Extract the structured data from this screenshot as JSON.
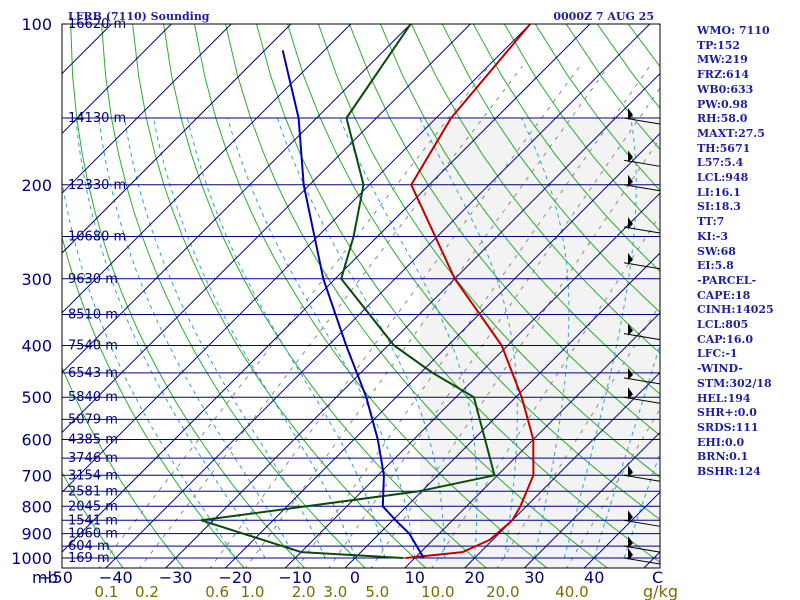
{
  "header": {
    "title": "LFRB (7110) Sounding",
    "valid": "0000Z  7 AUG 25"
  },
  "stats": [
    "WMO: 7110",
    "TP:152",
    "MW:219",
    "FRZ:614",
    "WB0:633",
    "PW:0.98",
    "RH:58.0",
    "MAXT:27.5",
    "TH:5671",
    "L57:5.4",
    "LCL:948",
    "LI:16.1",
    "SI:18.3",
    "TT:7",
    "KI:-3",
    "SW:68",
    "EI:5.8",
    "-PARCEL-",
    "CAPE:18",
    "CINH:14025",
    "LCL:805",
    "CAP:16.0",
    "LFC:-1",
    "-WIND-",
    "STM:302/18",
    "HEL:194",
    "SHR+:0.0",
    "SRDS:111",
    "EHI:0.0",
    "BRN:0.1",
    "BSHR:124"
  ],
  "chart_data": {
    "type": "line",
    "title": "LFRB (7110) Sounding",
    "xlabel": "C",
    "ylabel": "mb",
    "x_unit": "C",
    "mixing_ratio_unit": "g/kg",
    "xlim": [
      -50,
      50
    ],
    "ylim": [
      1000,
      100
    ],
    "y_scale": "log",
    "pressure_ticks": [
      100,
      200,
      300,
      400,
      500,
      600,
      700,
      800,
      900,
      1000
    ],
    "pressure_tick_labels": [
      "100",
      "200",
      "300",
      "400",
      "500",
      "600",
      "700",
      "800",
      "900",
      "1000"
    ],
    "temperature_ticks": [
      -50,
      -40,
      -30,
      -20,
      -10,
      0,
      10,
      20,
      30,
      40
    ],
    "temperature_tick_labels": [
      "−50",
      "−40",
      "−30",
      "−20",
      "−10",
      "0",
      "10",
      "20",
      "30",
      "40"
    ],
    "mixing_ratio_labels": [
      "0.1",
      "0.2",
      "0.6",
      "1.0",
      "2.0",
      "3.0",
      "5.0",
      "10.0",
      "20.0",
      "40.0"
    ],
    "height_labels": [
      {
        "p": 100,
        "label": "16620 m"
      },
      {
        "p": 150,
        "label": "14130 m"
      },
      {
        "p": 200,
        "label": "12330 m"
      },
      {
        "p": 250,
        "label": "10680 m"
      },
      {
        "p": 300,
        "label": "9630 m"
      },
      {
        "p": 350,
        "label": "8510 m"
      },
      {
        "p": 400,
        "label": "7540 m"
      },
      {
        "p": 450,
        "label": "6543 m"
      },
      {
        "p": 500,
        "label": "5840 m"
      },
      {
        "p": 550,
        "label": "5079 m"
      },
      {
        "p": 600,
        "label": "4385 m"
      },
      {
        "p": 650,
        "label": "3746 m"
      },
      {
        "p": 700,
        "label": "3154 m"
      },
      {
        "p": 750,
        "label": "2581 m"
      },
      {
        "p": 800,
        "label": "2045 m"
      },
      {
        "p": 850,
        "label": "1541 m"
      },
      {
        "p": 900,
        "label": "1060 m"
      },
      {
        "p": 950,
        "label": "604 m"
      },
      {
        "p": 1000,
        "label": "169 m"
      }
    ],
    "series": [
      {
        "color": "#c00000",
        "points": [
          {
            "p": 1000,
            "t": 8.5
          },
          {
            "p": 975,
            "t": 17.0
          },
          {
            "p": 925,
            "t": 19.5
          },
          {
            "p": 850,
            "t": 20.0
          },
          {
            "p": 800,
            "t": 19.0
          },
          {
            "p": 700,
            "t": 16.0
          },
          {
            "p": 600,
            "t": 10.0
          },
          {
            "p": 500,
            "t": 1.0
          },
          {
            "p": 400,
            "t": -11.0
          },
          {
            "p": 300,
            "t": -30.0
          },
          {
            "p": 200,
            "t": -53.0
          },
          {
            "p": 150,
            "t": -57.5
          },
          {
            "p": 100,
            "t": -60.0
          }
        ]
      },
      {
        "color": "#0a4a0a",
        "points": [
          {
            "p": 1000,
            "t": 8.0
          },
          {
            "p": 975,
            "t": -10.0
          },
          {
            "p": 850,
            "t": -32.0
          },
          {
            "p": 750,
            "t": -0.5
          },
          {
            "p": 700,
            "t": 9.5
          },
          {
            "p": 500,
            "t": -7.0
          },
          {
            "p": 450,
            "t": -18.0
          },
          {
            "p": 400,
            "t": -29.0
          },
          {
            "p": 300,
            "t": -49.0
          },
          {
            "p": 250,
            "t": -54.0
          },
          {
            "p": 200,
            "t": -61.0
          },
          {
            "p": 150,
            "t": -75.0
          },
          {
            "p": 100,
            "t": -80.0
          }
        ]
      },
      {
        "color": "#0000b0",
        "points": [
          {
            "p": 1000,
            "t": 11.5
          },
          {
            "p": 900,
            "t": 5.0
          },
          {
            "p": 850,
            "t": 0.5
          },
          {
            "p": 800,
            "t": -4.0
          },
          {
            "p": 700,
            "t": -9.0
          },
          {
            "p": 600,
            "t": -16.0
          },
          {
            "p": 500,
            "t": -25.0
          },
          {
            "p": 400,
            "t": -37.0
          },
          {
            "p": 300,
            "t": -52.0
          },
          {
            "p": 200,
            "t": -71.0
          },
          {
            "p": 150,
            "t": -83.0
          },
          {
            "p": 112,
            "t": -97.0
          }
        ]
      }
    ],
    "wind_barbs": [
      {
        "p": 150
      },
      {
        "p": 180
      },
      {
        "p": 200
      },
      {
        "p": 240
      },
      {
        "p": 280
      },
      {
        "p": 380
      },
      {
        "p": 460
      },
      {
        "p": 500
      },
      {
        "p": 700
      },
      {
        "p": 850
      },
      {
        "p": 950
      },
      {
        "p": 1000
      }
    ]
  }
}
